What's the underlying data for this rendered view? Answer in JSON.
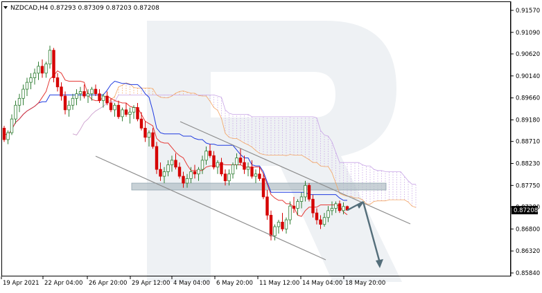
{
  "chart_data": {
    "type": "candlestick",
    "symbol_line": "NZDCAD,H4  0.87293 0.87309 0.87203 0.87208",
    "last_price_label": "0.87208",
    "y_ticks": [
      "0.91570",
      "0.91090",
      "0.90620",
      "0.90140",
      "0.89660",
      "0.89180",
      "0.88710",
      "0.88230",
      "0.87750",
      "0.87280",
      "0.86800",
      "0.86320",
      "0.85840"
    ],
    "x_ticks": [
      "19 Apr 2021",
      "22 Apr 04:00",
      "26 Apr 20:00",
      "29 Apr 12:00",
      "4 May 04:00",
      "6 May 20:00",
      "11 May 12:00",
      "14 May 04:00",
      "18 May 20:00"
    ],
    "ylim": [
      0.8584,
      0.9157
    ],
    "colors": {
      "bull": "#2e7d32",
      "bear": "#d50000",
      "tenkan": "#e53935",
      "kijun": "#1e3ae0",
      "cloud_a": "#f4a460",
      "cloud_b": "#c7a4e6",
      "channel": "#8c8c8c",
      "arrow": "#546e7a",
      "zone": "#b0bec5",
      "watermark": "#eef1f4"
    },
    "candles": [
      [
        0.89,
        0.8905,
        0.887,
        0.8875
      ],
      [
        0.8875,
        0.8895,
        0.8865,
        0.889
      ],
      [
        0.889,
        0.893,
        0.8885,
        0.892
      ],
      [
        0.892,
        0.896,
        0.891,
        0.895
      ],
      [
        0.895,
        0.8975,
        0.8935,
        0.8965
      ],
      [
        0.8965,
        0.8995,
        0.895,
        0.8985
      ],
      [
        0.8985,
        0.901,
        0.897,
        0.9
      ],
      [
        0.9,
        0.902,
        0.8985,
        0.901
      ],
      [
        0.901,
        0.903,
        0.8995,
        0.902
      ],
      [
        0.902,
        0.9045,
        0.9005,
        0.9035
      ],
      [
        0.9035,
        0.905,
        0.901,
        0.902
      ],
      [
        0.902,
        0.9045,
        0.901,
        0.904
      ],
      [
        0.904,
        0.908,
        0.903,
        0.907
      ],
      [
        0.907,
        0.9075,
        0.9,
        0.901
      ],
      [
        0.901,
        0.902,
        0.898,
        0.899
      ],
      [
        0.899,
        0.9,
        0.896,
        0.897
      ],
      [
        0.897,
        0.898,
        0.893,
        0.894
      ],
      [
        0.894,
        0.896,
        0.8925,
        0.895
      ],
      [
        0.895,
        0.8975,
        0.894,
        0.8965
      ],
      [
        0.8965,
        0.8985,
        0.895,
        0.8975
      ],
      [
        0.8975,
        0.899,
        0.896,
        0.898
      ],
      [
        0.898,
        0.8995,
        0.8965,
        0.897
      ],
      [
        0.897,
        0.8985,
        0.8955,
        0.8975
      ],
      [
        0.8975,
        0.899,
        0.896,
        0.8985
      ],
      [
        0.8985,
        0.8995,
        0.897,
        0.8975
      ],
      [
        0.8975,
        0.8985,
        0.8955,
        0.896
      ],
      [
        0.896,
        0.8975,
        0.8945,
        0.897
      ],
      [
        0.897,
        0.898,
        0.895,
        0.8955
      ],
      [
        0.8955,
        0.8965,
        0.8935,
        0.894
      ],
      [
        0.894,
        0.8955,
        0.8925,
        0.895
      ],
      [
        0.895,
        0.896,
        0.892,
        0.8925
      ],
      [
        0.8925,
        0.8945,
        0.8915,
        0.894
      ],
      [
        0.894,
        0.8955,
        0.8925,
        0.893
      ],
      [
        0.893,
        0.8945,
        0.891,
        0.8935
      ],
      [
        0.8935,
        0.895,
        0.892,
        0.8945
      ],
      [
        0.8945,
        0.8955,
        0.8915,
        0.892
      ],
      [
        0.892,
        0.8935,
        0.8895,
        0.89
      ],
      [
        0.89,
        0.8915,
        0.887,
        0.888
      ],
      [
        0.888,
        0.8895,
        0.886,
        0.889
      ],
      [
        0.889,
        0.89,
        0.8855,
        0.886
      ],
      [
        0.886,
        0.887,
        0.88,
        0.881
      ],
      [
        0.881,
        0.8825,
        0.8785,
        0.8795
      ],
      [
        0.8795,
        0.8815,
        0.878,
        0.8805
      ],
      [
        0.8805,
        0.883,
        0.8795,
        0.882
      ],
      [
        0.882,
        0.884,
        0.8805,
        0.883
      ],
      [
        0.883,
        0.8845,
        0.881,
        0.8815
      ],
      [
        0.8815,
        0.8825,
        0.879,
        0.8795
      ],
      [
        0.8795,
        0.8805,
        0.877,
        0.878
      ],
      [
        0.878,
        0.88,
        0.877,
        0.879
      ],
      [
        0.879,
        0.8815,
        0.878,
        0.8805
      ],
      [
        0.8805,
        0.882,
        0.879,
        0.88
      ],
      [
        0.88,
        0.8815,
        0.8785,
        0.881
      ],
      [
        0.881,
        0.884,
        0.88,
        0.883
      ],
      [
        0.883,
        0.886,
        0.882,
        0.885
      ],
      [
        0.885,
        0.8865,
        0.8835,
        0.884
      ],
      [
        0.884,
        0.885,
        0.881,
        0.8815
      ],
      [
        0.8815,
        0.883,
        0.88,
        0.8825
      ],
      [
        0.8825,
        0.8835,
        0.8795,
        0.88
      ],
      [
        0.88,
        0.881,
        0.8775,
        0.8785
      ],
      [
        0.8785,
        0.881,
        0.8775,
        0.88
      ],
      [
        0.88,
        0.8825,
        0.879,
        0.882
      ],
      [
        0.882,
        0.8845,
        0.881,
        0.8835
      ],
      [
        0.8835,
        0.8855,
        0.882,
        0.8825
      ],
      [
        0.8825,
        0.884,
        0.88,
        0.881
      ],
      [
        0.881,
        0.8825,
        0.8795,
        0.8815
      ],
      [
        0.8815,
        0.883,
        0.879,
        0.8795
      ],
      [
        0.8795,
        0.881,
        0.878,
        0.88
      ],
      [
        0.88,
        0.8815,
        0.8785,
        0.879
      ],
      [
        0.879,
        0.88,
        0.8745,
        0.875
      ],
      [
        0.875,
        0.8765,
        0.87,
        0.871
      ],
      [
        0.871,
        0.872,
        0.8655,
        0.8665
      ],
      [
        0.8665,
        0.869,
        0.8655,
        0.8685
      ],
      [
        0.8685,
        0.87,
        0.867,
        0.8695
      ],
      [
        0.8695,
        0.8715,
        0.8675,
        0.868
      ],
      [
        0.868,
        0.8705,
        0.867,
        0.87
      ],
      [
        0.87,
        0.874,
        0.869,
        0.873
      ],
      [
        0.873,
        0.875,
        0.8715,
        0.8725
      ],
      [
        0.8725,
        0.8745,
        0.871,
        0.874
      ],
      [
        0.874,
        0.876,
        0.8725,
        0.875
      ],
      [
        0.875,
        0.8785,
        0.874,
        0.8775
      ],
      [
        0.8775,
        0.878,
        0.874,
        0.8745
      ],
      [
        0.8745,
        0.8755,
        0.8705,
        0.8715
      ],
      [
        0.8715,
        0.8725,
        0.869,
        0.87
      ],
      [
        0.87,
        0.871,
        0.868,
        0.869
      ],
      [
        0.869,
        0.8715,
        0.8685,
        0.8705
      ],
      [
        0.8705,
        0.873,
        0.8695,
        0.872
      ],
      [
        0.872,
        0.874,
        0.871,
        0.8725
      ],
      [
        0.8725,
        0.874,
        0.8715,
        0.8735
      ],
      [
        0.8735,
        0.8742,
        0.8715,
        0.872
      ],
      [
        0.872,
        0.8738,
        0.8712,
        0.8729
      ],
      [
        0.8729,
        0.8731,
        0.872,
        0.8721
      ]
    ],
    "annotations": {
      "channel_upper": [
        [
          260,
          176
        ],
        [
          592,
          324
        ]
      ],
      "channel_lower": [
        [
          138,
          226
        ],
        [
          470,
          376
        ]
      ],
      "resistance_zone": {
        "from": 0.8765,
        "to": 0.878
      },
      "arrow_up_end": [
        524,
        292
      ],
      "arrow_down_end": [
        548,
        388
      ]
    }
  }
}
